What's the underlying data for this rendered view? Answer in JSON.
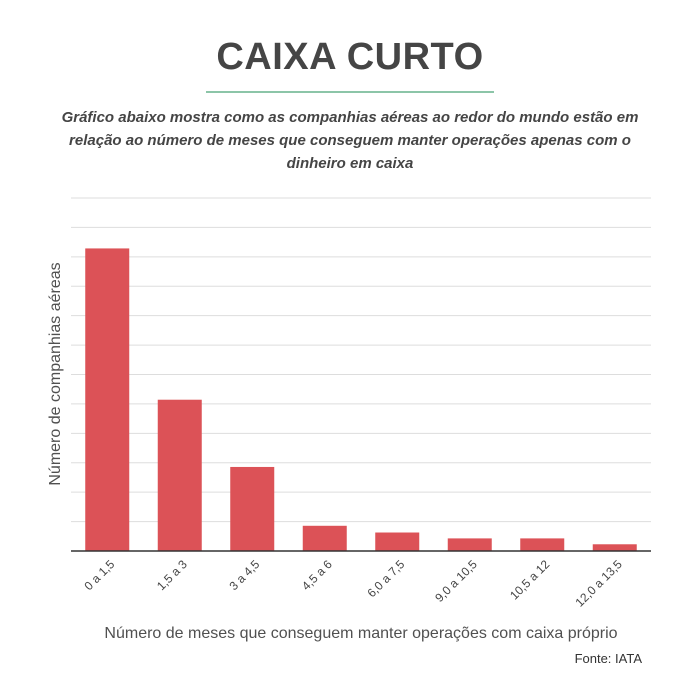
{
  "header": {
    "title": "CAIXA CURTO",
    "subtitle": "Gráfico abaixo mostra como as companhias aéreas ao redor do mundo estão em relação ao número de meses que conseguem manter operações apenas com o dinheiro em caixa"
  },
  "source": "Fonte: IATA",
  "colors": {
    "bar": "#dc5257",
    "grid": "#dddddd",
    "axis": "#333333",
    "title_rule": "#8cc5a8"
  },
  "chart_data": {
    "type": "bar",
    "title": "CAIXA CURTO",
    "xlabel": "Número de meses que conseguem manter operações com caixa próprio",
    "ylabel": "Número de companhias aéreas",
    "categories": [
      "0 a 1,5",
      "1,5 a 3",
      "3 a 4,5",
      "4,5 a 6",
      "6,0 a 7,5",
      "9,0 a 10,5",
      "10,5 a 12",
      "12,0 a 13,5"
    ],
    "values": [
      36,
      18,
      10,
      3,
      2.2,
      1.5,
      1.5,
      0.8
    ],
    "ylim": [
      0,
      42
    ],
    "grid": true,
    "y_tick_labels_shown": false,
    "legend": "none"
  }
}
